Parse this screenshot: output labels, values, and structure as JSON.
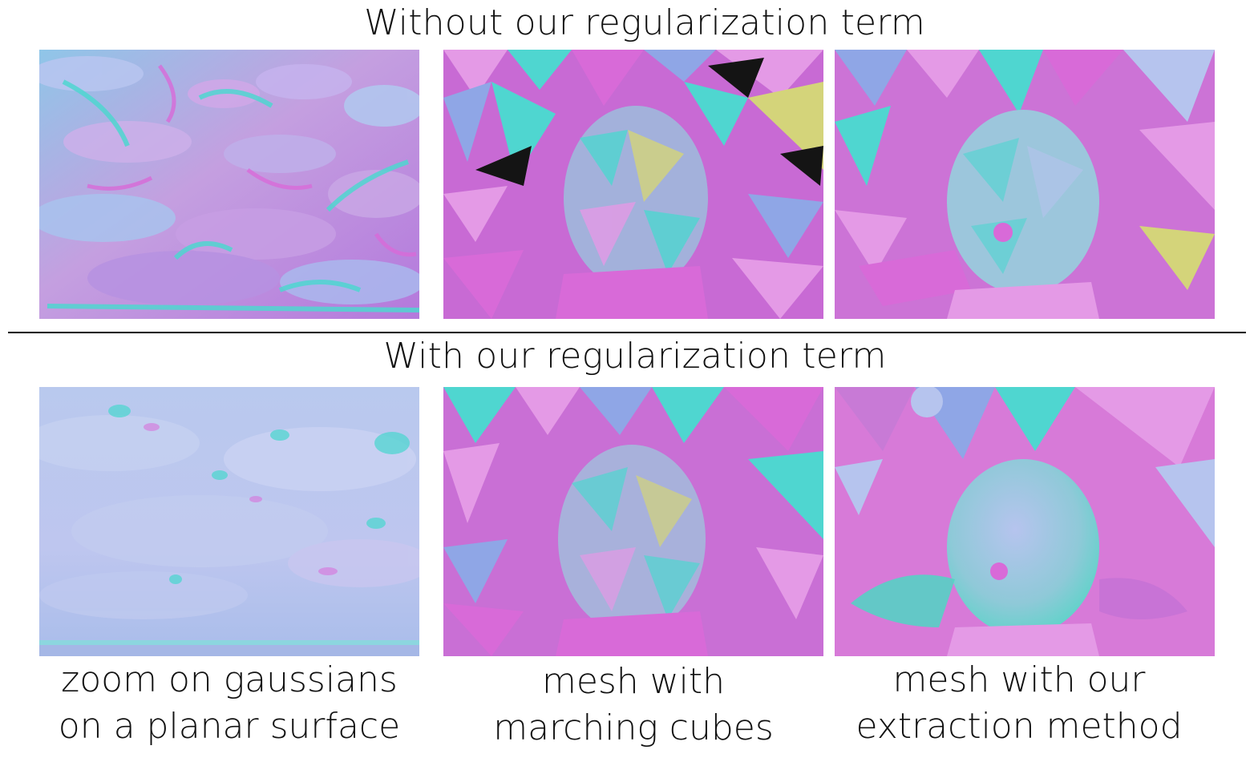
{
  "titles": {
    "top": "Without our regularization term",
    "bottom": "With our regularization term"
  },
  "captions": [
    {
      "line1": "zoom on gaussians",
      "line2": "on a planar surface"
    },
    {
      "line1": "mesh with",
      "line2": "marching cubes"
    },
    {
      "line1": "mesh with our",
      "line2": "extraction method"
    }
  ],
  "palette": {
    "lavender": "#b6c4ee",
    "magenta": "#d86ad8",
    "cyan": "#4fd6d0",
    "pink": "#e49ae6",
    "blue": "#8fa6e6",
    "yellow": "#d4d47a",
    "dark": "#141414"
  }
}
